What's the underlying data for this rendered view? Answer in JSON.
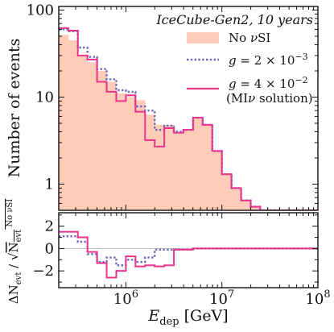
{
  "chart_data": {
    "type": "histogram",
    "x_scale": "log",
    "bin_edges": [
      200000,
      251189,
      316228,
      398107,
      501187,
      630957,
      794328,
      1000000,
      1258925,
      1584893,
      1995262,
      2511886,
      3162278,
      3981072,
      5011872,
      6309573,
      7943282,
      10000000,
      12589254,
      15848932,
      19952623,
      25118864,
      31622777,
      39810717,
      50118723,
      63095734,
      79432823,
      100000000
    ],
    "top_panel": {
      "ylabel": "Number of events",
      "y_scale": "log",
      "ylim": [
        0.5,
        110
      ],
      "yticks": [
        {
          "value": 1,
          "label": "1"
        },
        {
          "value": 10,
          "label": "10"
        },
        {
          "value": 100,
          "label": "100"
        }
      ],
      "legend_title": "IceCube-Gen2, 10 years",
      "series": [
        {
          "name": "No νSI",
          "style": "filled",
          "color": "#ffccb8",
          "values": [
            52,
            45,
            30,
            25,
            20,
            15,
            11,
            10,
            9.2,
            6.3,
            4.8,
            4.8,
            4.0,
            4.2,
            5.8,
            4.8,
            2.4,
            1.3,
            0.9,
            0.65,
            0.55,
            0.5,
            0.5,
            0.5,
            0.5,
            0.5,
            0.5
          ]
        },
        {
          "name": "g = 2 × 10⁻³",
          "style": "dotted",
          "color": "#6e6aba",
          "values": [
            60,
            57,
            37,
            29,
            21,
            16,
            12,
            11.5,
            7.8,
            7.0,
            4.2,
            4.7,
            4.0,
            4.2,
            5.8,
            4.8,
            2.4,
            1.3,
            0.9,
            0.65,
            0.55,
            0.5,
            0.5,
            0.5,
            0.5,
            0.5,
            0.5
          ]
        },
        {
          "name": "g = 4 × 10⁻²",
          "name_line2": "(MIν solution)",
          "style": "solid",
          "color": "#e8348c",
          "values": [
            62,
            58,
            30,
            27,
            15,
            11.5,
            9.0,
            10.5,
            6.8,
            3.2,
            2.7,
            4.4,
            3.9,
            4.2,
            5.8,
            4.8,
            2.4,
            1.3,
            0.9,
            0.65,
            0.55,
            0.5,
            0.5,
            0.5,
            0.5,
            0.5,
            0.5
          ]
        }
      ]
    },
    "bottom_panel": {
      "ylabel": "ΔN_evt / √N_evt^No νSI",
      "ylim": [
        -3.5,
        3.2
      ],
      "yticks": [
        {
          "value": 2,
          "label": "2"
        },
        {
          "value": 0,
          "label": "0"
        },
        {
          "value": -2,
          "label": "−2"
        }
      ],
      "zero_line": true,
      "series": [
        {
          "name": "g = 2 × 10⁻³",
          "style": "dotted",
          "color": "#6e6aba",
          "values": [
            1.1,
            1.1,
            0.6,
            -0.5,
            -1.2,
            -0.8,
            -1.5,
            -1.0,
            -1.2,
            -0.8,
            -0.1,
            -0.1,
            -0.1,
            -0.1,
            0,
            0,
            0,
            0,
            0,
            0,
            0,
            0,
            0,
            0,
            0,
            0,
            0
          ]
        },
        {
          "name": "g = 4 × 10⁻²",
          "style": "solid",
          "color": "#e8348c",
          "values": [
            1.5,
            1.5,
            1.0,
            -0.3,
            -1.3,
            -2.6,
            -2.0,
            -0.7,
            -1.6,
            -1.5,
            -1.6,
            -1.5,
            -0.1,
            -0.1,
            0,
            0,
            0,
            0,
            0,
            0,
            0,
            0,
            0,
            0,
            0,
            0,
            0
          ]
        }
      ]
    },
    "x_axis": {
      "label": "E",
      "label_subscript": "dep",
      "label_unit": "[GeV]",
      "xlim": [
        200000,
        100000000
      ],
      "ticks": [
        {
          "value": 1000000,
          "base": "10",
          "exp": "6"
        },
        {
          "value": 10000000,
          "base": "10",
          "exp": "7"
        },
        {
          "value": 100000000,
          "base": "10",
          "exp": "8"
        }
      ]
    }
  }
}
